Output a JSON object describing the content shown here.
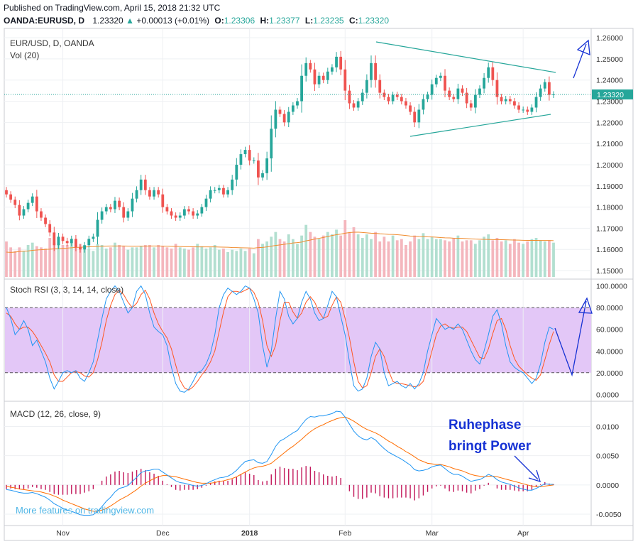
{
  "header": {
    "published": "Published on TradingView.com, April 15, 2018 21:32 UTC",
    "symbol": "OANDA:EURUSD, D",
    "last": "1.23320",
    "change": "+0.00013 (+0.01%)",
    "o_label": "O:",
    "o": "1.23306",
    "h_label": "H:",
    "h": "1.23377",
    "l_label": "L:",
    "l": "1.23235",
    "c_label": "C:",
    "c": "1.23320"
  },
  "watermark": "More features on tradingview.com",
  "colors": {
    "up": "#26a69a",
    "down": "#ef5350",
    "up_vol": "#b2dfd0",
    "down_vol": "#f4b6bd",
    "vol_ma": "#f08c2f",
    "stoch_k": "#2196f3",
    "stoch_d": "#ff5722",
    "stoch_band": "#e3c7f7",
    "macd_line": "#2196f3",
    "signal_line": "#ff6d00",
    "hist": "#c2185b",
    "trendline": "#26a69a",
    "annot": "#1632d4",
    "last_price": "#26a69a"
  },
  "chart_data": [
    {
      "pane": "price",
      "type": "candlestick",
      "title": "EUR/USD, D, OANDA",
      "subtitle": "Vol (20)",
      "ylim": [
        1.147,
        1.2617
      ],
      "yticks": [
        1.15,
        1.16,
        1.17,
        1.18,
        1.19,
        1.2,
        1.21,
        1.22,
        1.23,
        1.24,
        1.25,
        1.26
      ],
      "ytick_labels": [
        "1.15000",
        "1.16000",
        "1.17000",
        "1.18000",
        "1.19000",
        "1.20000",
        "1.21000",
        "1.22000",
        "1.23000",
        "1.24000",
        "1.25000",
        "1.26000"
      ],
      "last_price_label": "1.23320",
      "last_price": 1.2332,
      "xtick_labels": [
        "Nov",
        "Dec",
        "2018",
        "Feb",
        "Mar",
        "Apr"
      ],
      "xtick_index": [
        13,
        36,
        56,
        78,
        98,
        119
      ],
      "close": [
        1.186,
        1.1835,
        1.181,
        1.176,
        1.179,
        1.182,
        1.185,
        1.178,
        1.175,
        1.172,
        1.168,
        1.162,
        1.166,
        1.164,
        1.163,
        1.165,
        1.161,
        1.16,
        1.162,
        1.165,
        1.166,
        1.174,
        1.178,
        1.18,
        1.179,
        1.183,
        1.18,
        1.175,
        1.178,
        1.184,
        1.188,
        1.193,
        1.188,
        1.185,
        1.188,
        1.186,
        1.18,
        1.178,
        1.176,
        1.175,
        1.176,
        1.179,
        1.178,
        1.176,
        1.177,
        1.18,
        1.184,
        1.188,
        1.188,
        1.189,
        1.186,
        1.188,
        1.193,
        1.2,
        1.205,
        1.207,
        1.202,
        1.202,
        1.194,
        1.196,
        1.203,
        1.217,
        1.226,
        1.224,
        1.22,
        1.225,
        1.228,
        1.23,
        1.242,
        1.248,
        1.245,
        1.238,
        1.242,
        1.24,
        1.244,
        1.246,
        1.251,
        1.245,
        1.235,
        1.229,
        1.227,
        1.23,
        1.234,
        1.24,
        1.248,
        1.24,
        1.234,
        1.232,
        1.23,
        1.233,
        1.232,
        1.23,
        1.228,
        1.225,
        1.22,
        1.226,
        1.231,
        1.233,
        1.238,
        1.241,
        1.242,
        1.235,
        1.232,
        1.231,
        1.236,
        1.234,
        1.229,
        1.227,
        1.233,
        1.236,
        1.241,
        1.246,
        1.24,
        1.232,
        1.23,
        1.231,
        1.23,
        1.228,
        1.226,
        1.226,
        1.225,
        1.227,
        1.232,
        1.236,
        1.239,
        1.233,
        1.2332
      ],
      "volume_ylim": [
        0,
        60
      ],
      "volume": [
        30,
        25,
        22,
        25,
        22,
        27,
        29,
        26,
        25,
        24,
        33,
        29,
        28,
        27,
        27,
        30,
        27,
        28,
        26,
        24,
        22,
        28,
        27,
        24,
        25,
        29,
        27,
        26,
        23,
        25,
        25,
        26,
        27,
        27,
        25,
        27,
        26,
        25,
        24,
        28,
        25,
        24,
        23,
        25,
        28,
        26,
        24,
        25,
        27,
        23,
        24,
        21,
        23,
        22,
        24,
        22,
        24,
        20,
        32,
        28,
        30,
        34,
        38,
        32,
        30,
        36,
        32,
        28,
        35,
        44,
        38,
        34,
        32,
        35,
        38,
        36,
        40,
        35,
        48,
        38,
        42,
        36,
        33,
        36,
        32,
        38,
        30,
        34,
        30,
        35,
        31,
        32,
        27,
        30,
        35,
        32,
        37,
        32,
        34,
        32,
        32,
        31,
        30,
        33,
        35,
        30,
        31,
        31,
        28,
        31,
        34,
        36,
        31,
        33,
        30,
        31,
        28,
        32,
        29,
        28,
        30,
        32,
        33,
        31,
        30,
        31,
        29
      ],
      "volume_ma": [
        21,
        20.8,
        21,
        21.5,
        21.8,
        22,
        22.5,
        22.8,
        23,
        23.3,
        23.5,
        23.8,
        24,
        24.2,
        24.4,
        24.7,
        25,
        25.1,
        25.3,
        25.5,
        25.6,
        25.8,
        26,
        26.1,
        26.2,
        26.2,
        26.2,
        26.2,
        26.1,
        26,
        26,
        26.1,
        26.1,
        26.2,
        26.2,
        26.2,
        26.1,
        26,
        25.9,
        25.8,
        25.7,
        25.6,
        25.6,
        25.5,
        25.4,
        25.4,
        25.4,
        25.4,
        25.4,
        25.3,
        25.2,
        25.1,
        24.9,
        24.8,
        24.7,
        24.6,
        24.5,
        24.4,
        24.8,
        25,
        25.4,
        26,
        26.6,
        27.1,
        27.6,
        28.1,
        28.7,
        29,
        29.5,
        30.5,
        31.2,
        32,
        32.6,
        33.4,
        34.2,
        35,
        35.7,
        36.2,
        37,
        37.5,
        37.8,
        37.9,
        37.6,
        37.3,
        37,
        36.8,
        36.5,
        36.3,
        36,
        35.9,
        35.7,
        35.4,
        35,
        34.6,
        34.4,
        34.2,
        34.1,
        33.9,
        33.8,
        33.6,
        33.3,
        33.1,
        33,
        32.8,
        32.7,
        32.6,
        32.4,
        32.2,
        32,
        31.9,
        31.8,
        31.7,
        31.6,
        31.6,
        31.5,
        31.4,
        31.3,
        31.2,
        31.1,
        31,
        30.9,
        30.9,
        30.9,
        30.8,
        30.8,
        30.8,
        30.7
      ]
    },
    {
      "pane": "stoch_rsi",
      "type": "line",
      "title": "Stoch RSI (3, 3, 14, 14, close)",
      "ylim": [
        -5,
        103
      ],
      "yticks": [
        0,
        20,
        40,
        60,
        80,
        100
      ],
      "ytick_labels": [
        "0.0000",
        "20.0000",
        "40.0000",
        "60.0000",
        "80.0000",
        "100.0000"
      ],
      "band": [
        20,
        80
      ],
      "k": [
        80,
        70,
        55,
        60,
        68,
        60,
        45,
        50,
        40,
        30,
        15,
        5,
        12,
        20,
        22,
        20,
        22,
        15,
        12,
        20,
        30,
        50,
        70,
        88,
        95,
        100,
        95,
        85,
        75,
        80,
        95,
        100,
        92,
        75,
        62,
        58,
        55,
        45,
        25,
        10,
        3,
        2,
        5,
        12,
        20,
        22,
        28,
        38,
        55,
        80,
        92,
        98,
        95,
        92,
        95,
        100,
        98,
        88,
        75,
        45,
        25,
        40,
        70,
        95,
        88,
        72,
        65,
        70,
        85,
        95,
        88,
        75,
        68,
        70,
        82,
        95,
        90,
        72,
        55,
        30,
        8,
        3,
        5,
        15,
        35,
        48,
        42,
        20,
        8,
        10,
        12,
        8,
        6,
        10,
        5,
        10,
        20,
        40,
        55,
        70,
        65,
        60,
        62,
        60,
        65,
        60,
        50,
        40,
        32,
        28,
        40,
        55,
        72,
        78,
        65,
        45,
        30,
        25,
        22,
        20,
        15,
        10,
        15,
        28,
        48,
        62,
        60
      ],
      "d": [
        75,
        72,
        65,
        60,
        62,
        62,
        58,
        52,
        45,
        38,
        30,
        18,
        12,
        12,
        16,
        20,
        21,
        20,
        17,
        16,
        20,
        32,
        48,
        68,
        82,
        92,
        96,
        92,
        85,
        80,
        84,
        92,
        96,
        88,
        75,
        65,
        58,
        52,
        42,
        27,
        13,
        6,
        4,
        7,
        12,
        18,
        23,
        30,
        40,
        58,
        76,
        90,
        95,
        95,
        94,
        96,
        98,
        94,
        85,
        68,
        45,
        35,
        45,
        68,
        85,
        85,
        76,
        70,
        75,
        85,
        90,
        85,
        76,
        70,
        72,
        82,
        90,
        85,
        70,
        52,
        30,
        12,
        6,
        8,
        20,
        35,
        42,
        35,
        22,
        12,
        10,
        10,
        9,
        8,
        7,
        8,
        12,
        25,
        40,
        55,
        63,
        65,
        62,
        61,
        62,
        62,
        58,
        50,
        42,
        34,
        33,
        42,
        56,
        68,
        70,
        60,
        45,
        33,
        26,
        22,
        18,
        15,
        13,
        18,
        32,
        46,
        58
      ]
    },
    {
      "pane": "macd",
      "type": "line",
      "title": "MACD (12, 26, close, 9)",
      "ylim": [
        -0.0067,
        0.0137
      ],
      "yticks": [
        -0.005,
        0.0,
        0.005,
        0.01
      ],
      "ytick_labels": [
        "-0.0050",
        "0.0000",
        "0.0050",
        "0.0100"
      ],
      "macd": [
        -0.0008,
        -0.0009,
        -0.0011,
        -0.0013,
        -0.0014,
        -0.0014,
        -0.0013,
        -0.0015,
        -0.0018,
        -0.0021,
        -0.0026,
        -0.0032,
        -0.0036,
        -0.004,
        -0.0043,
        -0.0045,
        -0.0048,
        -0.0051,
        -0.0052,
        -0.0052,
        -0.0051,
        -0.0045,
        -0.0037,
        -0.0028,
        -0.0021,
        -0.0012,
        -0.0006,
        -0.0004,
        -0.0001,
        0.0006,
        0.0013,
        0.0021,
        0.0024,
        0.0025,
        0.0027,
        0.0027,
        0.0022,
        0.0017,
        0.0012,
        0.0007,
        0.0004,
        0.0003,
        0.0001,
        -0.0001,
        -0.0002,
        -0.0001,
        0.0002,
        0.0006,
        0.0009,
        0.0012,
        0.0013,
        0.0015,
        0.0019,
        0.0025,
        0.0033,
        0.004,
        0.0042,
        0.0043,
        0.0038,
        0.0037,
        0.004,
        0.0052,
        0.0066,
        0.0075,
        0.0079,
        0.0084,
        0.0089,
        0.0093,
        0.0103,
        0.0112,
        0.0117,
        0.0116,
        0.0118,
        0.0118,
        0.012,
        0.0122,
        0.0126,
        0.0125,
        0.0116,
        0.0104,
        0.0092,
        0.0084,
        0.0079,
        0.0077,
        0.0081,
        0.0077,
        0.0069,
        0.0062,
        0.0056,
        0.0052,
        0.0048,
        0.0044,
        0.0039,
        0.0034,
        0.0026,
        0.0024,
        0.0025,
        0.0027,
        0.0031,
        0.0033,
        0.0034,
        0.0028,
        0.0022,
        0.0018,
        0.0018,
        0.0015,
        0.001,
        0.0006,
        0.0008,
        0.0009,
        0.0013,
        0.0018,
        0.0015,
        0.0009,
        0.0005,
        0.0003,
        0.0001,
        -0.0002,
        -0.0005,
        -0.0007,
        -0.0009,
        -0.0009,
        -0.0006,
        -0.0002,
        0.0002,
        0.0001,
        0.0001
      ],
      "signal": [
        -0.0002,
        -0.0004,
        -0.0005,
        -0.0007,
        -0.0008,
        -0.0009,
        -0.001,
        -0.0011,
        -0.0012,
        -0.0014,
        -0.0016,
        -0.0019,
        -0.0022,
        -0.0026,
        -0.0029,
        -0.0032,
        -0.0035,
        -0.0038,
        -0.0041,
        -0.0043,
        -0.0045,
        -0.0045,
        -0.0043,
        -0.004,
        -0.0036,
        -0.0031,
        -0.0026,
        -0.0022,
        -0.0018,
        -0.0013,
        -0.0008,
        -0.0002,
        0.0003,
        0.0007,
        0.0011,
        0.0014,
        0.0016,
        0.0016,
        0.0015,
        0.0014,
        0.0012,
        0.001,
        0.0008,
        0.0006,
        0.0004,
        0.0003,
        0.0003,
        0.0003,
        0.0004,
        0.0006,
        0.0007,
        0.0009,
        0.0011,
        0.0014,
        0.0018,
        0.0022,
        0.0026,
        0.0029,
        0.0031,
        0.0032,
        0.0034,
        0.0037,
        0.0043,
        0.0049,
        0.0055,
        0.0061,
        0.0066,
        0.0072,
        0.0078,
        0.0085,
        0.0091,
        0.0096,
        0.01,
        0.0103,
        0.0107,
        0.011,
        0.0113,
        0.0115,
        0.0116,
        0.0113,
        0.0109,
        0.0104,
        0.0099,
        0.0095,
        0.0092,
        0.0089,
        0.0085,
        0.008,
        0.0075,
        0.0071,
        0.0066,
        0.0062,
        0.0057,
        0.0053,
        0.0048,
        0.0043,
        0.004,
        0.0037,
        0.0036,
        0.0035,
        0.0035,
        0.0033,
        0.0031,
        0.0028,
        0.0026,
        0.0024,
        0.0021,
        0.0018,
        0.0016,
        0.0015,
        0.0014,
        0.0015,
        0.0015,
        0.0014,
        0.0012,
        0.001,
        0.0008,
        0.0006,
        0.0004,
        0.0002,
        0.0,
        -0.0002,
        -0.0003,
        -0.0003,
        -0.0002,
        -0.0001,
        0.0
      ]
    }
  ],
  "annotation": {
    "line1": "Ruhephase",
    "line2": "bringt Power"
  }
}
